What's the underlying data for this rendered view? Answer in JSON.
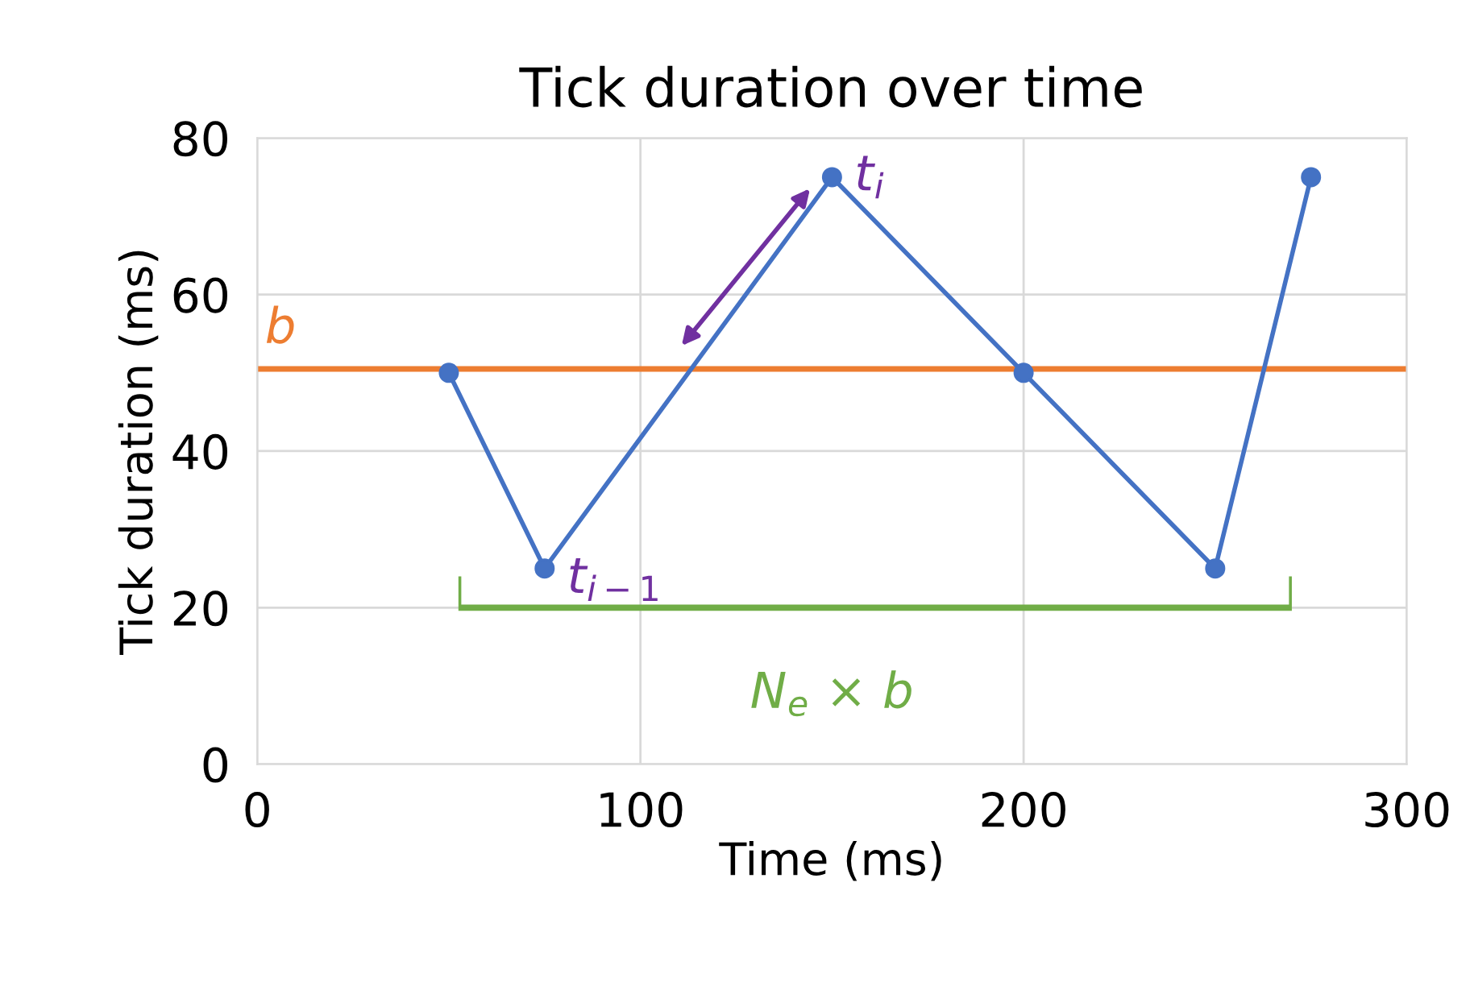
{
  "chart_data": {
    "type": "line",
    "title": "Tick duration over time",
    "xlabel": "Time (ms)",
    "ylabel": "Tick duration (ms)",
    "x": [
      50,
      75,
      150,
      200,
      250,
      275
    ],
    "series": [
      {
        "color": "#4472c4",
        "values": [
          50,
          25,
          75,
          50,
          25,
          75
        ]
      }
    ],
    "marker": "circle",
    "line_style": "solid",
    "grid": true,
    "legend": false,
    "xlim": [
      0,
      300
    ],
    "xticks": [
      0,
      100,
      200,
      300
    ],
    "ylim": [
      0,
      80
    ],
    "yticks": [
      0,
      20,
      40,
      60,
      80
    ],
    "ref_lines": [
      {
        "axis": "y",
        "value": 50.5,
        "label": "b",
        "color": "#ed7d31"
      }
    ],
    "annotations": [
      {
        "text": "t$_{i}$",
        "x": 150,
        "y": 75
      },
      {
        "text": "t$_{i−1}$",
        "x": 75,
        "y": 25
      },
      "N$_{e}$ × b"
    ]
  }
}
